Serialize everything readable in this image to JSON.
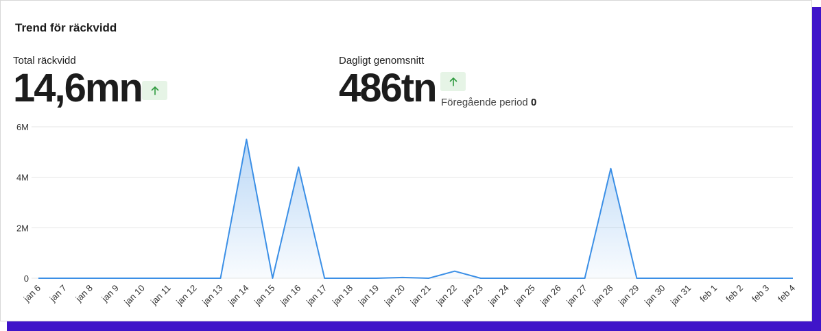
{
  "card": {
    "title": "Trend för räckvidd"
  },
  "metrics": {
    "total": {
      "label": "Total räckvidd",
      "value": "14,6mn",
      "trend_icon": "arrow-up-icon"
    },
    "daily": {
      "label": "Dagligt genomsnitt",
      "value": "486tn",
      "trend_icon": "arrow-up-icon",
      "previous_label": "Föregående period",
      "previous_value": "0"
    }
  },
  "colors": {
    "line": "#3b8fe6",
    "badge_bg": "#e6f4e6",
    "badge_arrow": "#2e9a3e",
    "accent_border": "#3f14c9"
  },
  "chart_data": {
    "type": "area",
    "title": "",
    "xlabel": "",
    "ylabel": "",
    "ylim": [
      0,
      6000000
    ],
    "yticks": [
      {
        "value": 0,
        "label": "0"
      },
      {
        "value": 2000000,
        "label": "2M"
      },
      {
        "value": 4000000,
        "label": "4M"
      },
      {
        "value": 6000000,
        "label": "6M"
      }
    ],
    "grid": true,
    "legend": "none",
    "categories": [
      "jan 6",
      "jan 7",
      "jan 8",
      "jan 9",
      "jan 10",
      "jan 11",
      "jan 12",
      "jan 13",
      "jan 14",
      "jan 15",
      "jan 16",
      "jan 17",
      "jan 18",
      "jan 19",
      "jan 20",
      "jan 21",
      "jan 22",
      "jan 23",
      "jan 24",
      "jan 25",
      "jan 26",
      "jan 27",
      "jan 28",
      "jan 29",
      "jan 30",
      "jan 31",
      "feb 1",
      "feb 2",
      "feb 3",
      "feb 4"
    ],
    "series": [
      {
        "values": [
          0,
          0,
          0,
          0,
          0,
          0,
          0,
          0,
          5500000,
          0,
          4400000,
          0,
          0,
          0,
          30000,
          0,
          280000,
          0,
          0,
          0,
          0,
          0,
          4350000,
          0,
          0,
          0,
          0,
          0,
          0,
          0
        ]
      }
    ]
  }
}
